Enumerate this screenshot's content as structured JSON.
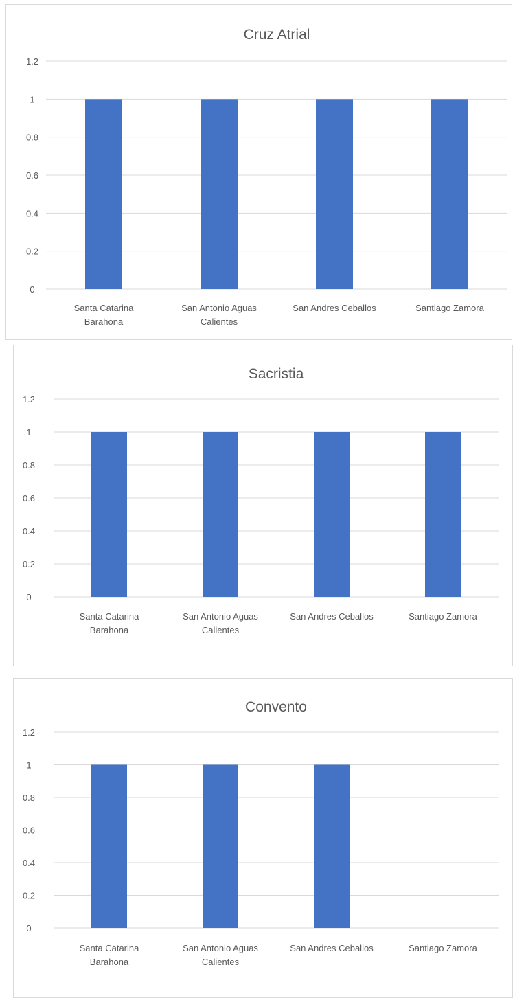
{
  "chart_data": [
    {
      "type": "bar",
      "title": "Cruz Atrial",
      "categories": [
        [
          "Santa Catarina",
          "Barahona"
        ],
        [
          "San Antonio Aguas",
          "Calientes"
        ],
        [
          "San Andres Ceballos"
        ],
        [
          "Santiago Zamora"
        ]
      ],
      "values": [
        1,
        1,
        1,
        1
      ],
      "ylim": [
        0,
        1.2
      ],
      "yticks": [
        "0",
        "0.2",
        "0.4",
        "0.6",
        "0.8",
        "1",
        "1.2"
      ],
      "xlabel": "",
      "ylabel": "",
      "grid": true,
      "legend": "none",
      "bar_color": "#4472C4"
    },
    {
      "type": "bar",
      "title": "Sacristia",
      "categories": [
        [
          "Santa Catarina",
          "Barahona"
        ],
        [
          "San Antonio Aguas",
          "Calientes"
        ],
        [
          "San Andres Ceballos"
        ],
        [
          "Santiago Zamora"
        ]
      ],
      "values": [
        1,
        1,
        1,
        1
      ],
      "ylim": [
        0,
        1.2
      ],
      "yticks": [
        "0",
        "0.2",
        "0.4",
        "0.6",
        "0.8",
        "1",
        "1.2"
      ],
      "xlabel": "",
      "ylabel": "",
      "grid": true,
      "legend": "none",
      "bar_color": "#4472C4"
    },
    {
      "type": "bar",
      "title": "Convento",
      "categories": [
        [
          "Santa Catarina",
          "Barahona"
        ],
        [
          "San Antonio Aguas",
          "Calientes"
        ],
        [
          "San Andres Ceballos"
        ],
        [
          "Santiago Zamora"
        ]
      ],
      "values": [
        1,
        1,
        1,
        0
      ],
      "ylim": [
        0,
        1.2
      ],
      "yticks": [
        "0",
        "0.2",
        "0.4",
        "0.6",
        "0.8",
        "1",
        "1.2"
      ],
      "xlabel": "",
      "ylabel": "",
      "grid": true,
      "legend": "none",
      "bar_color": "#4472C4"
    }
  ]
}
